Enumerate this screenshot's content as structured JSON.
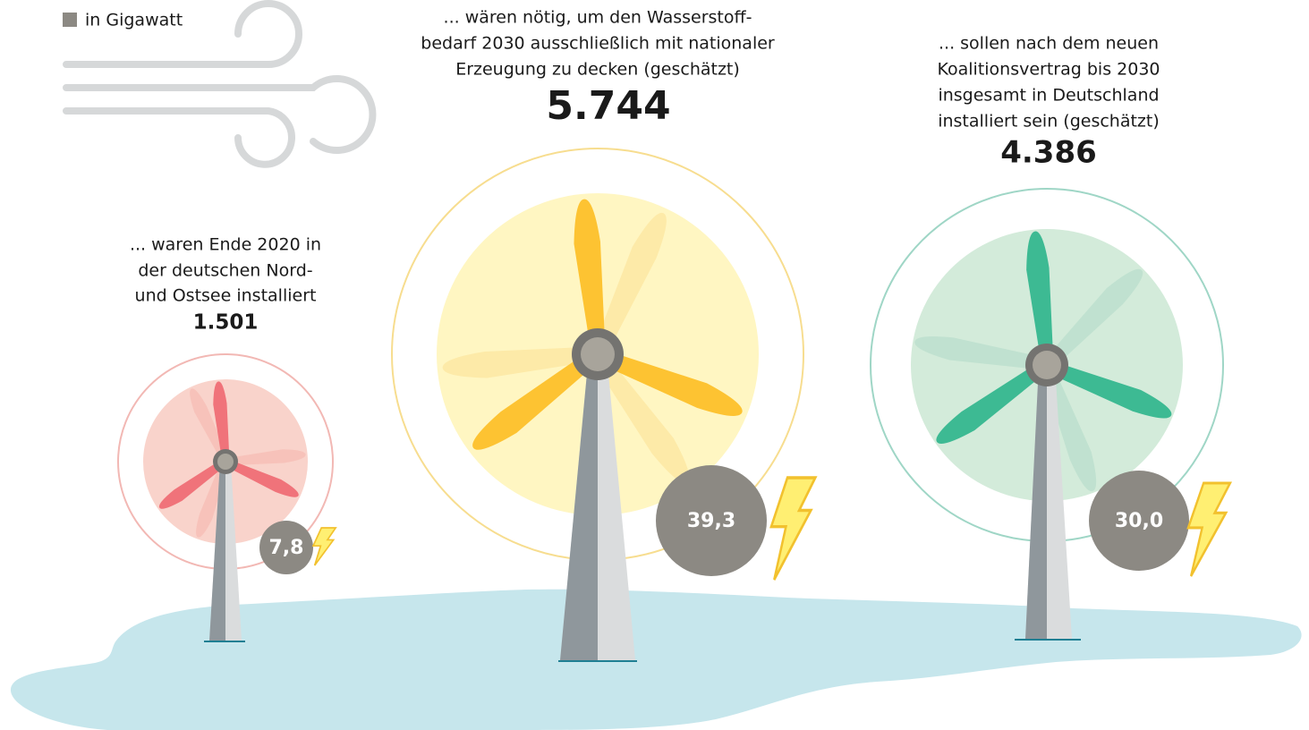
{
  "legend": "in Gigawatt",
  "items": [
    {
      "description": [
        "... waren Ende 2020 in",
        "der deutschen Nord-",
        "und Ostsee installiert"
      ],
      "count": "1.501",
      "gigawatt": "7,8"
    },
    {
      "description": [
        "... wären nötig, um den Wasserstoff-",
        "bedarf 2030 ausschließlich mit nationaler",
        "Erzeugung zu decken (geschätzt)"
      ],
      "count": "5.744",
      "gigawatt": "39,3"
    },
    {
      "description": [
        "... sollen nach dem neuen",
        "Koalitionsvertrag bis 2030",
        "insgesamt in Deutschland",
        "installiert sein (geschätzt)"
      ],
      "count": "4.386",
      "gigawatt": "30,0"
    }
  ]
}
